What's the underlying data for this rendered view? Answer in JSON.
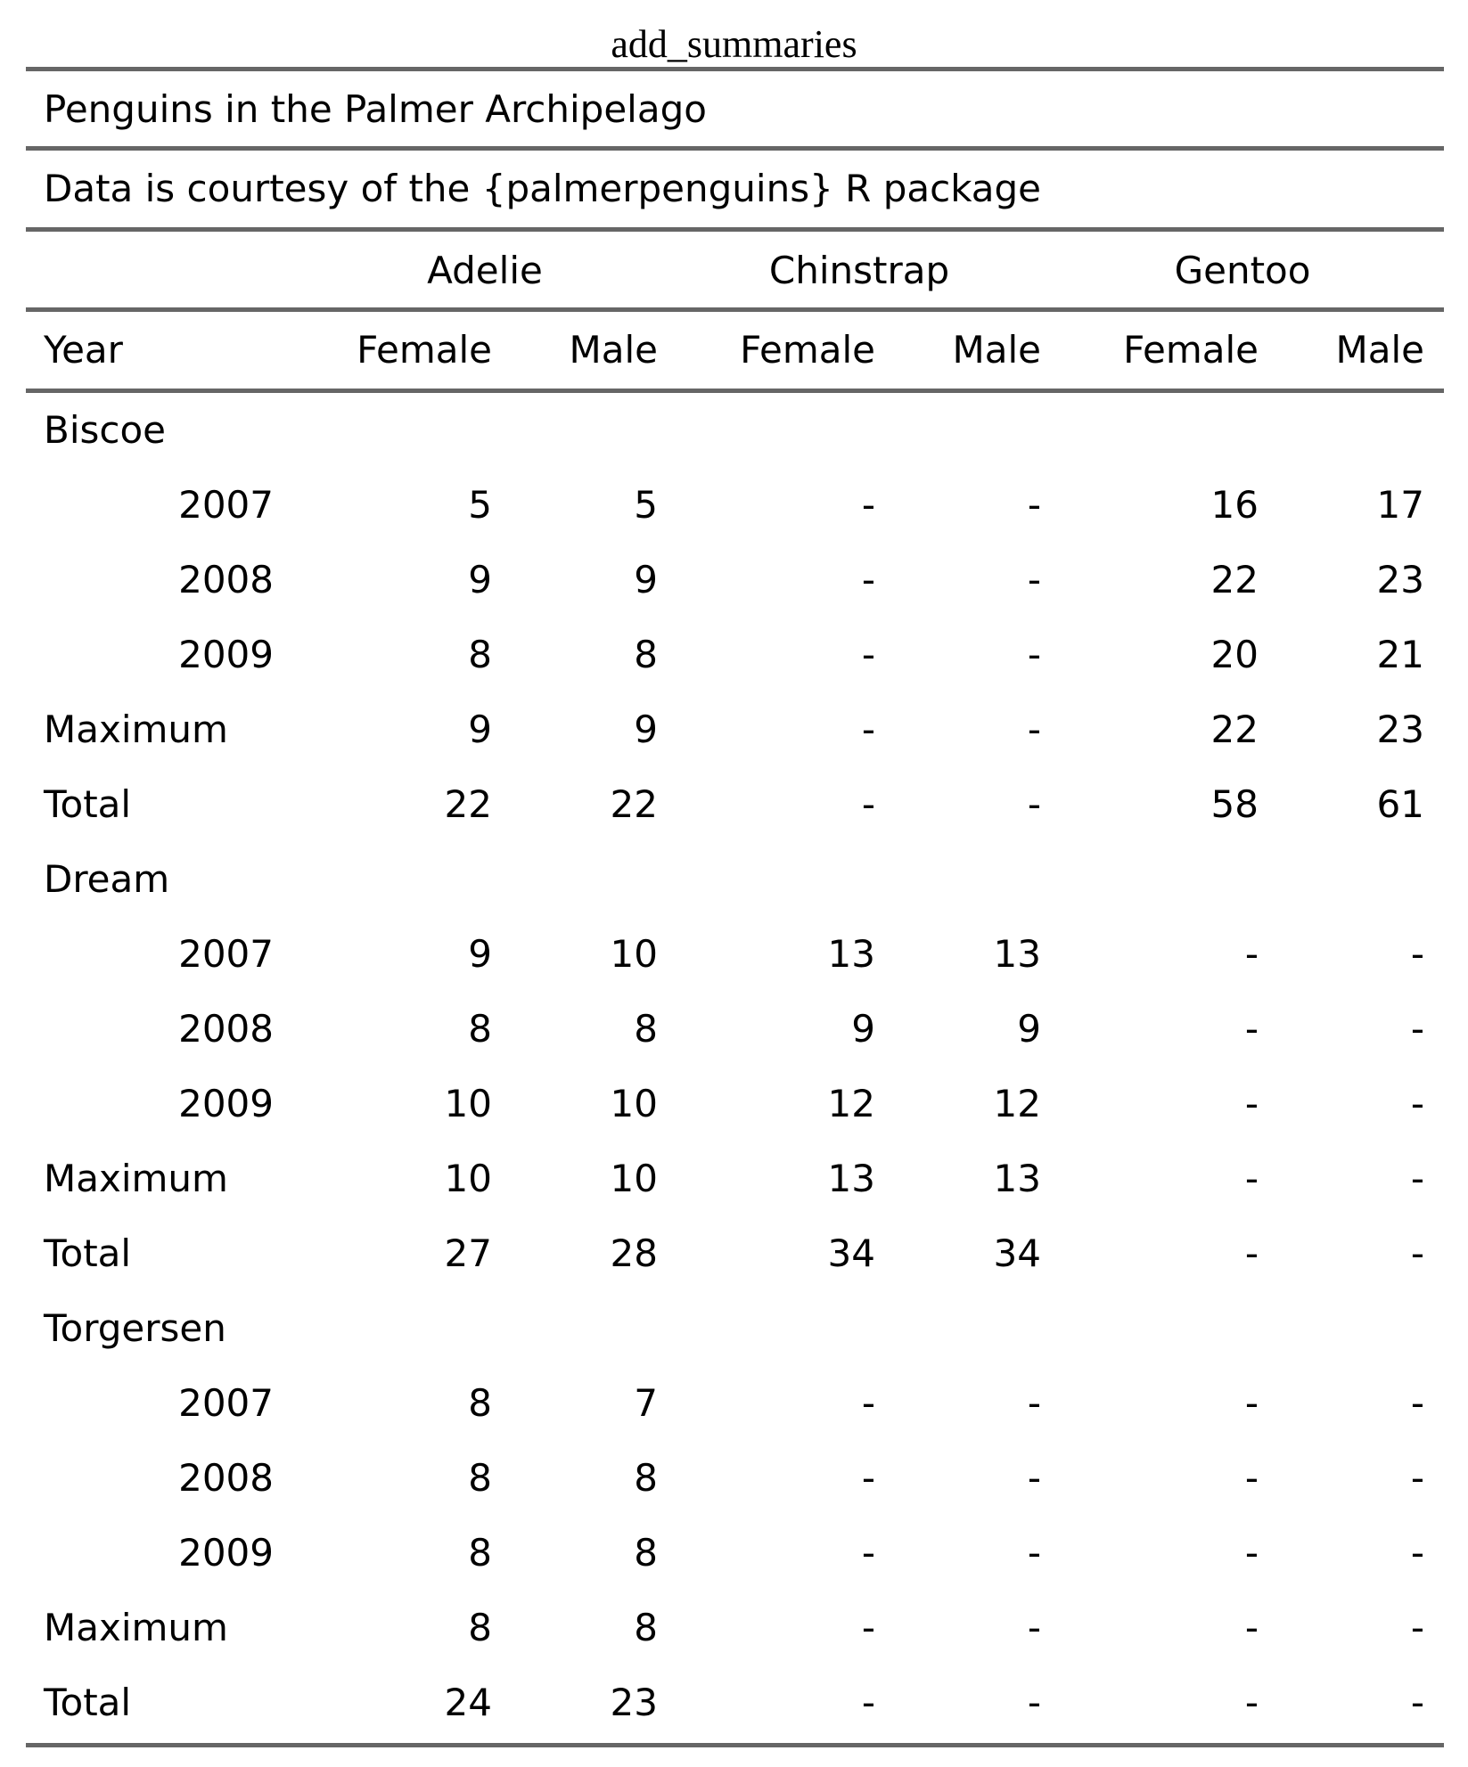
{
  "caption": "add_summaries",
  "title": "Penguins in the Palmer Archipelago",
  "subtitle": "Data is courtesy of the {palmerpenguins} R package",
  "spanners": [
    "Adelie",
    "Chinstrap",
    "Gentoo"
  ],
  "columns": [
    "Year",
    "Female",
    "Male",
    "Female",
    "Male",
    "Female",
    "Male"
  ],
  "groups": [
    {
      "label": "Biscoe",
      "rows": [
        {
          "stub": "2007",
          "values": [
            "5",
            "5",
            "-",
            "-",
            "16",
            "17"
          ]
        },
        {
          "stub": "2008",
          "values": [
            "9",
            "9",
            "-",
            "-",
            "22",
            "23"
          ]
        },
        {
          "stub": "2009",
          "values": [
            "8",
            "8",
            "-",
            "-",
            "20",
            "21"
          ]
        }
      ],
      "summaries": [
        {
          "stub": "Maximum",
          "values": [
            "9",
            "9",
            "-",
            "-",
            "22",
            "23"
          ]
        },
        {
          "stub": "Total",
          "values": [
            "22",
            "22",
            "-",
            "-",
            "58",
            "61"
          ]
        }
      ]
    },
    {
      "label": "Dream",
      "rows": [
        {
          "stub": "2007",
          "values": [
            "9",
            "10",
            "13",
            "13",
            "-",
            "-"
          ]
        },
        {
          "stub": "2008",
          "values": [
            "8",
            "8",
            "9",
            "9",
            "-",
            "-"
          ]
        },
        {
          "stub": "2009",
          "values": [
            "10",
            "10",
            "12",
            "12",
            "-",
            "-"
          ]
        }
      ],
      "summaries": [
        {
          "stub": "Maximum",
          "values": [
            "10",
            "10",
            "13",
            "13",
            "-",
            "-"
          ]
        },
        {
          "stub": "Total",
          "values": [
            "27",
            "28",
            "34",
            "34",
            "-",
            "-"
          ]
        }
      ]
    },
    {
      "label": "Torgersen",
      "rows": [
        {
          "stub": "2007",
          "values": [
            "8",
            "7",
            "-",
            "-",
            "-",
            "-"
          ]
        },
        {
          "stub": "2008",
          "values": [
            "8",
            "8",
            "-",
            "-",
            "-",
            "-"
          ]
        },
        {
          "stub": "2009",
          "values": [
            "8",
            "8",
            "-",
            "-",
            "-",
            "-"
          ]
        }
      ],
      "summaries": [
        {
          "stub": "Maximum",
          "values": [
            "8",
            "8",
            "-",
            "-",
            "-",
            "-"
          ]
        },
        {
          "stub": "Total",
          "values": [
            "24",
            "23",
            "-",
            "-",
            "-",
            "-"
          ]
        }
      ]
    }
  ]
}
